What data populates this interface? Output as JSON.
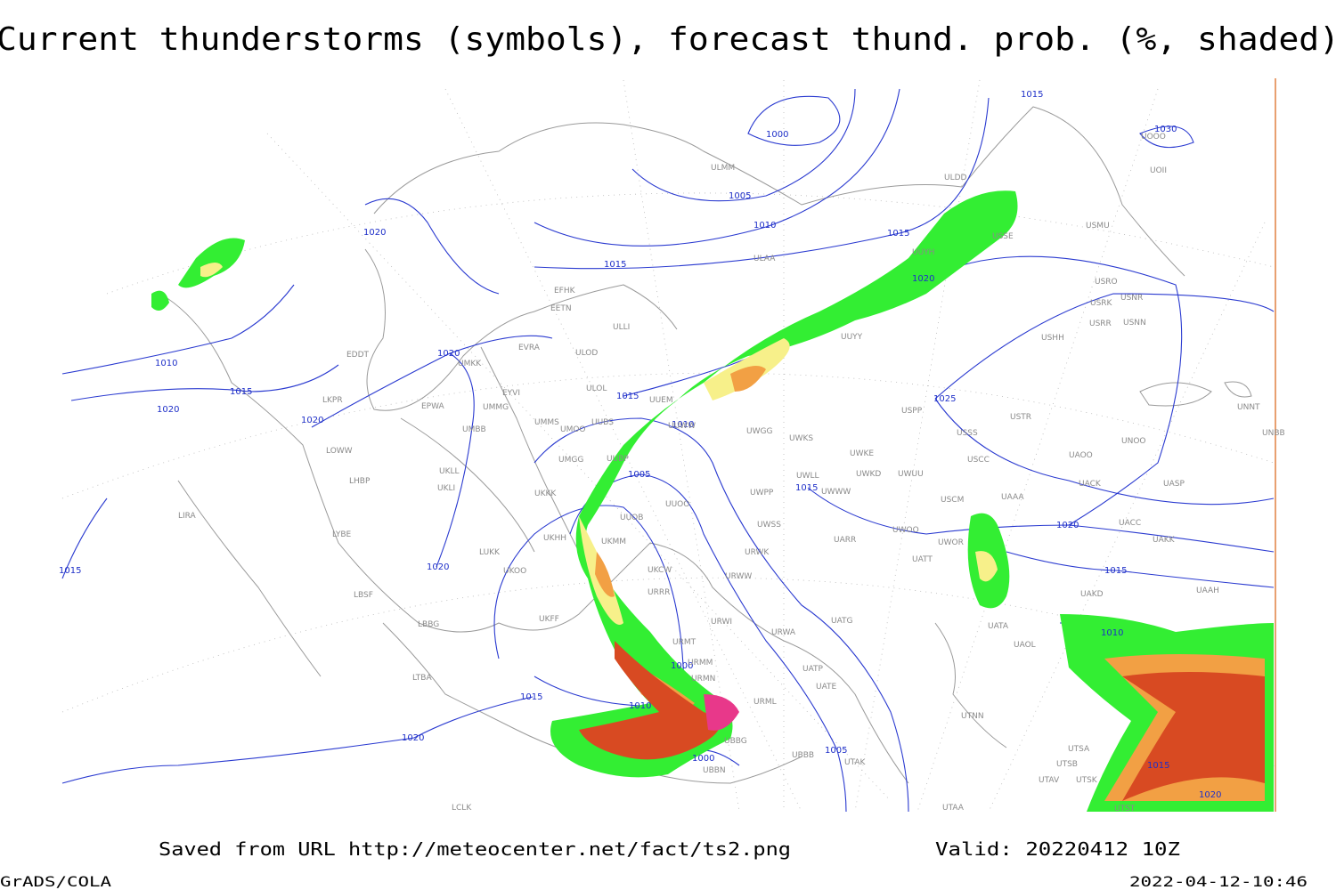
{
  "header": {
    "title": "Current thunderstorms (symbols), forecast thund. prob. (%, shaded)"
  },
  "footer": {
    "source": "Saved from URL http://meteocenter.net/fact/ts2.png",
    "valid": "Valid: 20220412 10Z",
    "software": "GrADS/COLA",
    "timestamp": "2022-04-12-10:46"
  },
  "isobar_labels": [
    1000,
    1005,
    1010,
    1015,
    1015,
    1020,
    1015,
    1030,
    1020,
    1010,
    1015,
    1020,
    1020,
    1020,
    1015,
    1010,
    1005,
    1015,
    1025,
    1020,
    1015,
    1015,
    1020,
    1000,
    1015,
    1010,
    1020,
    1000,
    1005,
    1010,
    1015,
    1020
  ],
  "stations": [
    "ULDD",
    "ULMM",
    "ULAA",
    "UUYH",
    "EFHK",
    "EETN",
    "ULLI",
    "USHH",
    "USRR",
    "USNN",
    "USRK",
    "USNR",
    "USRO",
    "USMU",
    "UOOO",
    "UOII",
    "USSE",
    "EVRA",
    "ULOD",
    "UMKK",
    "EDDT",
    "UUYY",
    "EYVI",
    "ULOL",
    "UUEM",
    "EPWA",
    "UMMG",
    "LKPR",
    "UMMS",
    "UUBS",
    "UMOO",
    "UUWW",
    "UMBB",
    "UWGG",
    "UWKS",
    "UWKE",
    "UWKD",
    "UWUU",
    "UWLL",
    "UWWW",
    "LOWW",
    "UMGG",
    "UUBP",
    "UKLL",
    "UKLI",
    "LHBP",
    "UKKK",
    "UWPP",
    "UUOO",
    "UUOB",
    "UWSS",
    "UKHH",
    "UKMM",
    "LIRA",
    "LYBE",
    "UARR",
    "UWOO",
    "UWOR",
    "UATT",
    "URWK",
    "LUKK",
    "UKOO",
    "UKCW",
    "URWW",
    "URRR",
    "LBSF",
    "UAKD",
    "UKFF",
    "LBBG",
    "URWI",
    "UATG",
    "UATA",
    "UAOL",
    "URMT",
    "URWA",
    "URMM",
    "URMN",
    "UATE",
    "UATP",
    "LTBA",
    "URML",
    "UTNN",
    "UBBG",
    "UBBB",
    "UTAK",
    "UBBN",
    "UTSB",
    "UTSA",
    "UTAV",
    "UTSK",
    "UTAA",
    "LCLK",
    "UTST",
    "USTR",
    "USPP",
    "USSS",
    "USCC",
    "UACK",
    "UASP",
    "UAOO",
    "UNOO",
    "UNNT",
    "UNBB",
    "UAAA",
    "USCM",
    "UACC",
    "UAKK",
    "UAAH"
  ]
}
